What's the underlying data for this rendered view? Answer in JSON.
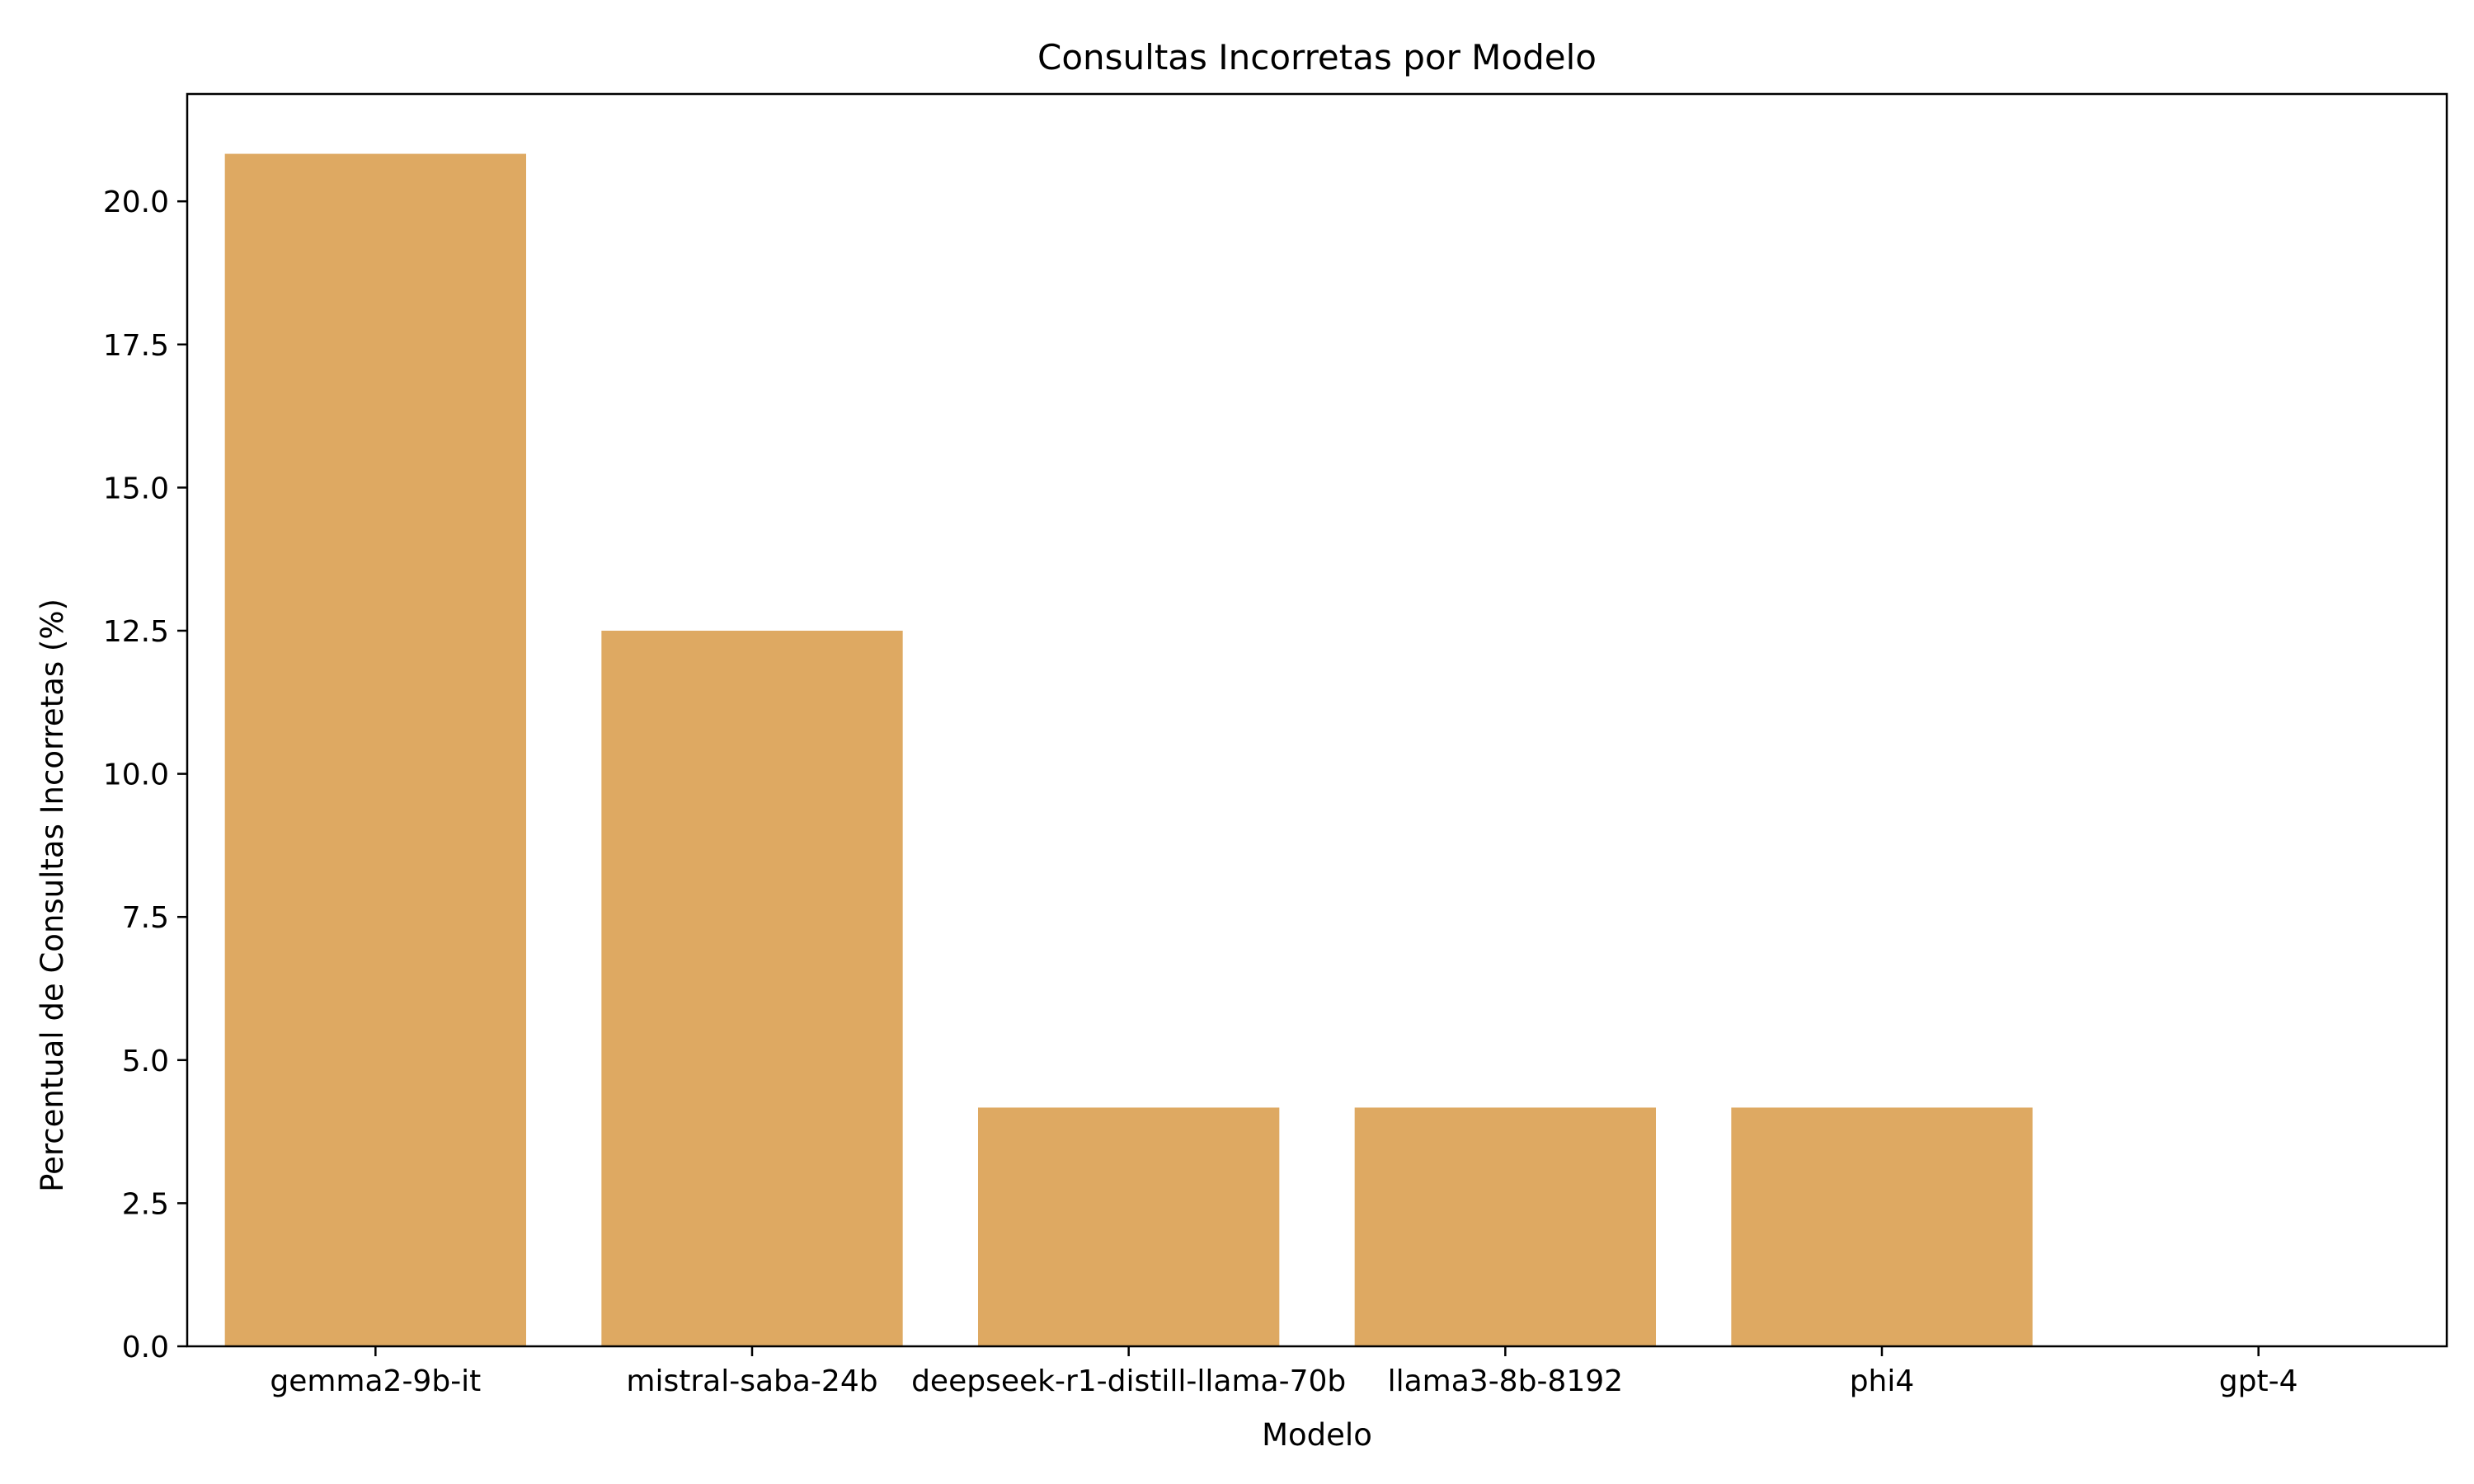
{
  "chart_data": {
    "type": "bar",
    "title": "Consultas Incorretas por Modelo",
    "xlabel": "Modelo",
    "ylabel": "Percentual de Consultas Incorretas (%)",
    "categories": [
      "gemma2-9b-it",
      "mistral-saba-24b",
      "deepseek-r1-distill-llama-70b",
      "llama3-8b-8192",
      "phi4",
      "gpt-4"
    ],
    "values": [
      20.83,
      12.5,
      4.17,
      4.17,
      4.17,
      0
    ],
    "ylim": [
      0,
      21.875
    ],
    "yticks": [
      "0.0",
      "2.5",
      "5.0",
      "7.5",
      "10.0",
      "12.5",
      "15.0",
      "17.5",
      "20.0"
    ],
    "grid": false,
    "legend": "none",
    "bar_color": "#dea962"
  }
}
